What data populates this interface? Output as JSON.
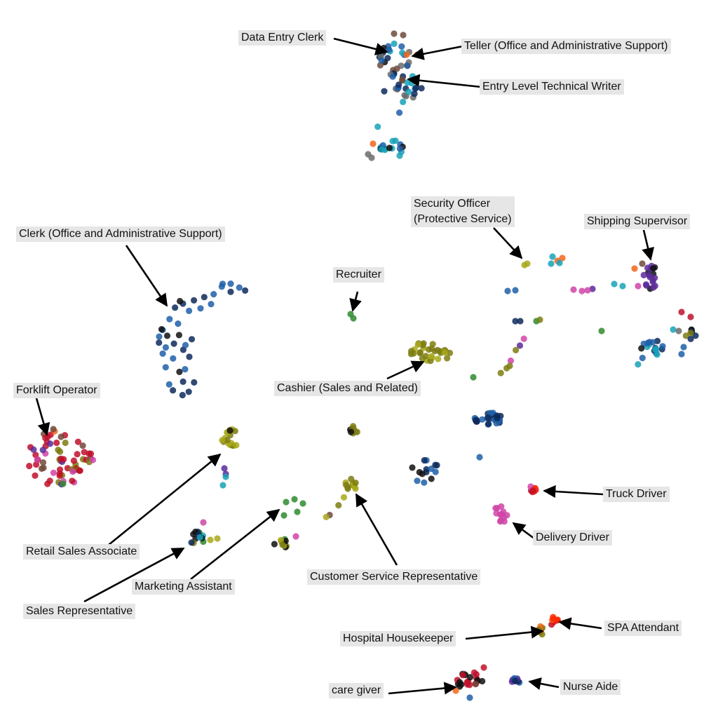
{
  "chart_data": {
    "type": "scatter",
    "title": "",
    "xlabel": "",
    "ylabel": "",
    "grid": false,
    "legend": "none",
    "palette": [
      "#1f5fa8",
      "#0d2a5c",
      "#17a2b8",
      "#6e4a3a",
      "#f2661c",
      "#6b6b6b",
      "#a8a81a",
      "#7d7d12",
      "#2e8b2e",
      "#c0102a",
      "#d044a8",
      "#5a2a9a",
      "#111111",
      "#ff2a00"
    ],
    "annotations": [
      {
        "text": "Data Entry Clerk"
      },
      {
        "text": "Teller (Office and Administrative Support)"
      },
      {
        "text": "Entry Level Technical Writer"
      },
      {
        "text": "Clerk (Office and Administrative Support)"
      },
      {
        "text": "Recruiter"
      },
      {
        "lines": [
          "Security Officer",
          "(Protective Service)"
        ]
      },
      {
        "text": "Shipping Supervisor"
      },
      {
        "text": "Forklift Operator"
      },
      {
        "text": "Cashier (Sales and Related)"
      },
      {
        "text": "Retail Sales Associate"
      },
      {
        "text": "Truck Driver"
      },
      {
        "text": "Delivery Driver"
      },
      {
        "text": "Sales Representative"
      },
      {
        "text": "Marketing Assistant"
      },
      {
        "text": "Customer Service Representative"
      },
      {
        "text": "SPA Attendant"
      },
      {
        "text": "Hospital Housekeeper"
      },
      {
        "text": "care giver"
      },
      {
        "text": "Nurse Aide"
      }
    ]
  }
}
